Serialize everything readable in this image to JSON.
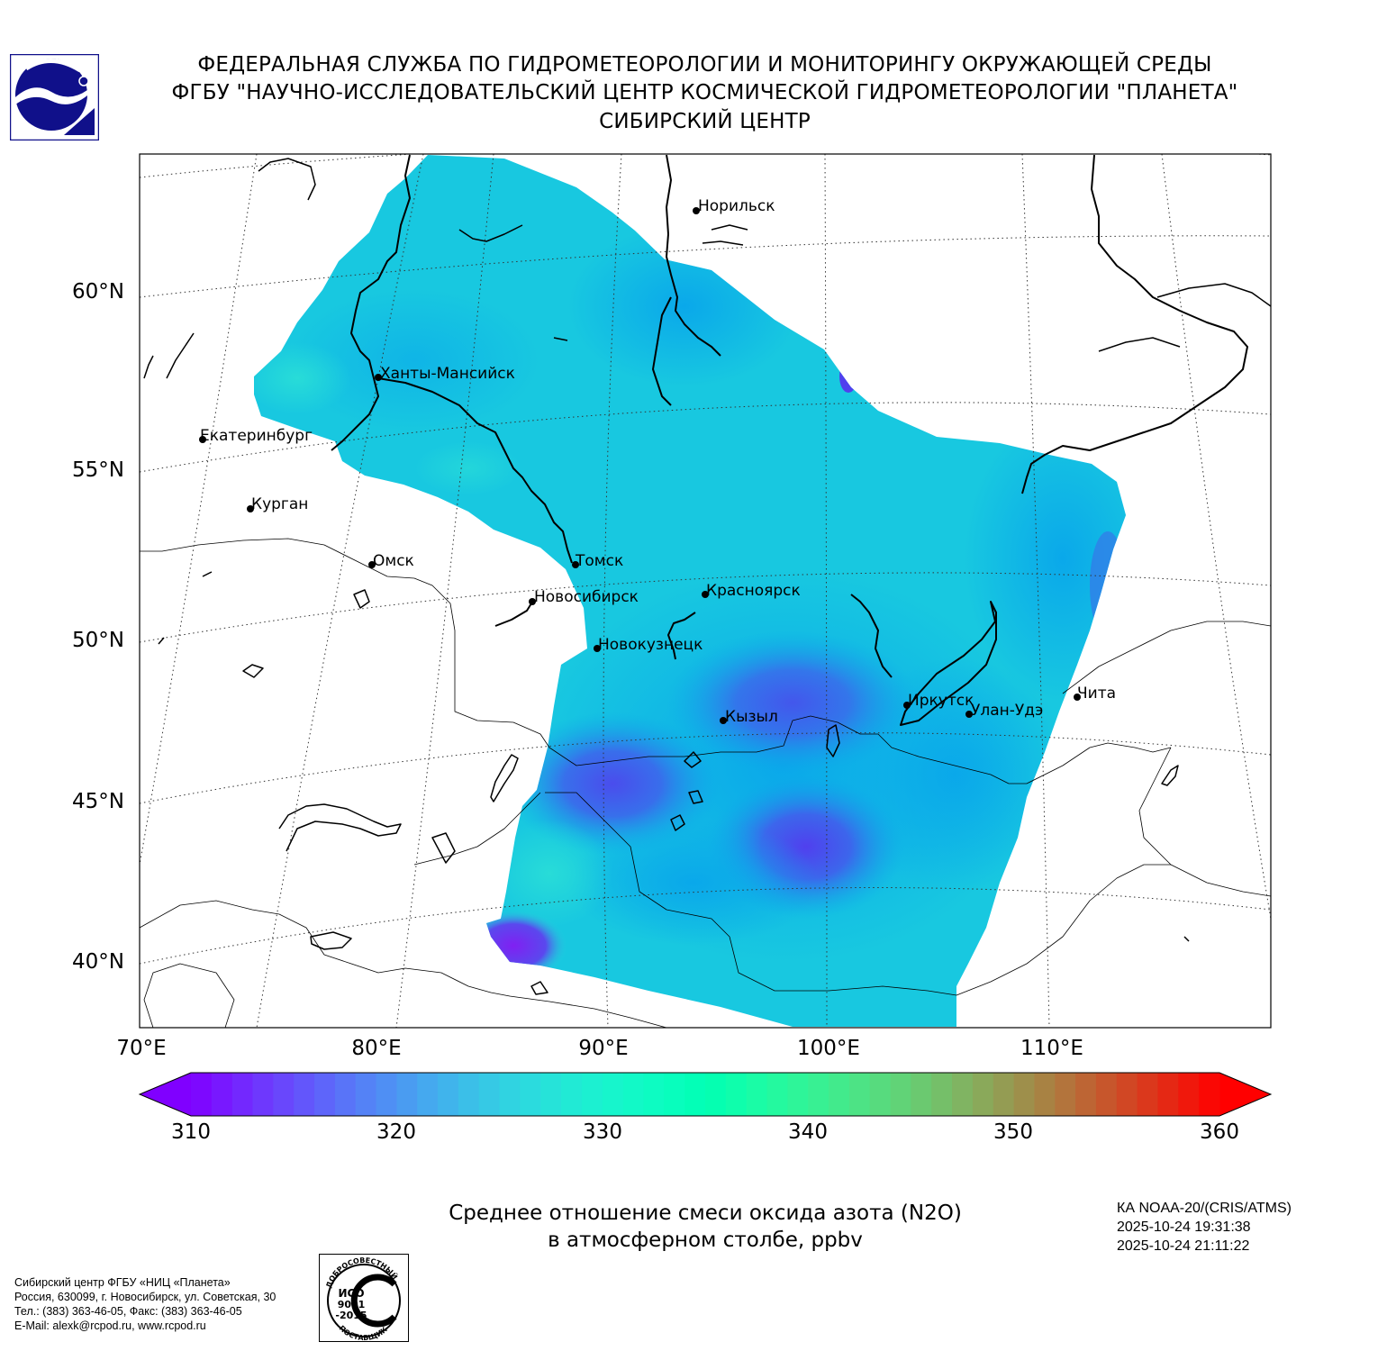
{
  "header": {
    "line1": "ФЕДЕРАЛЬНАЯ СЛУЖБА ПО ГИДРОМЕТЕОРОЛОГИИ И МОНИТОРИНГУ ОКРУЖАЮЩЕЙ СРЕДЫ",
    "line2": "ФГБУ \"НАУЧНО-ИССЛЕДОВАТЕЛЬСКИЙ ЦЕНТР КОСМИЧЕСКОЙ ГИДРОМЕТЕОРОЛОГИИ \"ПЛАНЕТА\"",
    "line3": "СИБИРСКИЙ ЦЕНТР"
  },
  "map": {
    "lat_labels": [
      "60°N",
      "55°N",
      "50°N",
      "45°N",
      "40°N"
    ],
    "lon_labels": [
      "70°E",
      "80°E",
      "90°E",
      "100°E",
      "110°E"
    ],
    "cities": [
      {
        "name": "Норильск"
      },
      {
        "name": "Ханты-Мансийск"
      },
      {
        "name": "Екатеринбург"
      },
      {
        "name": "Курган"
      },
      {
        "name": "Омск"
      },
      {
        "name": "Томск"
      },
      {
        "name": "Новосибирск"
      },
      {
        "name": "Красноярск"
      },
      {
        "name": "Новокузнецк"
      },
      {
        "name": "Иркутск"
      },
      {
        "name": "Улан-Удэ"
      },
      {
        "name": "Чита"
      },
      {
        "name": "Кызыл"
      }
    ],
    "colors": {
      "data_base": "#18c8e0",
      "data_low": "#0aa8ea",
      "data_min": "#4848ee",
      "data_edge": "#7a2cf0",
      "coast": "#000000"
    }
  },
  "colorbar": {
    "min": 310,
    "max": 360,
    "labels": [
      "310",
      "320",
      "330",
      "340",
      "350",
      "360"
    ],
    "extend": "both",
    "colormap": "rainbow"
  },
  "caption": {
    "line1": "Среднее отношение смеси оксида азота (N2O)",
    "line2": "в атмосферном столбе, ppbv"
  },
  "satellite": {
    "name": "КА NOAA-20/(CRIS/ATMS)",
    "time_start": "2025-10-24 19:31:38",
    "time_end": "2025-10-24 21:11:22"
  },
  "organization": {
    "name": "Сибирский центр ФГБУ «НИЦ «Планета»",
    "address": "Россия, 630099, г. Новосибирск, ул. Советская, 30",
    "phone": "Тел.: (383) 363-46-05, Факс: (383) 363-46-05",
    "email": "E-Mail: alexk@rcpod.ru, www.rcpod.ru"
  },
  "certificate": {
    "top_text": "ДОБРОСОВЕСТНЫЙ",
    "standard": "ИСО",
    "number": "9001",
    "year": "-2015",
    "bottom_text": "ПОСТАВЩИК"
  }
}
